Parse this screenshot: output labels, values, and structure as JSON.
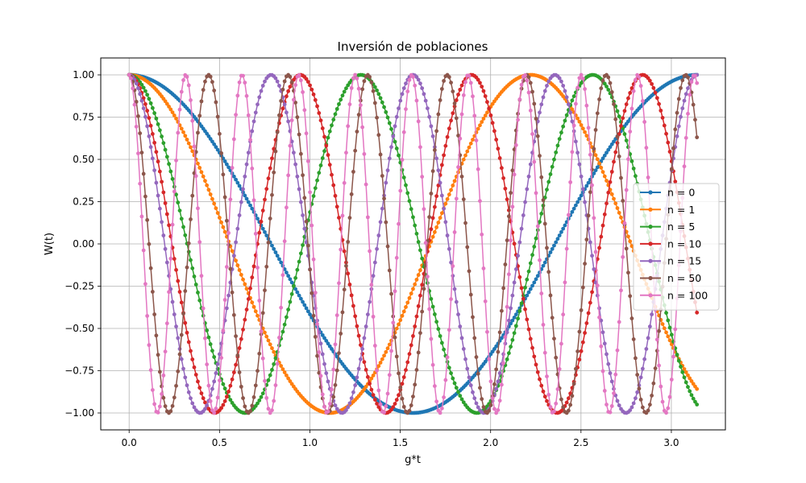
{
  "chart_data": {
    "type": "line",
    "title": "Inversión de poblaciones",
    "xlabel": "g*t",
    "ylabel": "W(t)",
    "xlim": [
      -0.157,
      3.299
    ],
    "ylim": [
      -1.1,
      1.1
    ],
    "x_range": [
      0,
      3.14159
    ],
    "points_per_series": 315,
    "xticks": [
      0.0,
      0.5,
      1.0,
      1.5,
      2.0,
      2.5,
      3.0
    ],
    "xtick_labels": [
      "0.0",
      "0.5",
      "1.0",
      "1.5",
      "2.0",
      "2.5",
      "3.0"
    ],
    "yticks": [
      1.0,
      0.75,
      0.5,
      0.25,
      0.0,
      -0.25,
      -0.5,
      -0.75,
      -1.0
    ],
    "ytick_labels": [
      "1.00",
      "0.75",
      "0.50",
      "0.25",
      "0.00",
      "−0.25",
      "−0.50",
      "−0.75",
      "−1.00"
    ],
    "grid": true,
    "legend_position": "center-right",
    "formula": "W(t) = cos(2 * sqrt(n+1) * g*t)",
    "series": [
      {
        "name": "n = 0",
        "n": 0,
        "color": "#1f77b4"
      },
      {
        "name": "n = 1",
        "n": 1,
        "color": "#ff7f0e"
      },
      {
        "name": "n = 5",
        "n": 5,
        "color": "#2ca02c"
      },
      {
        "name": "n = 10",
        "n": 10,
        "color": "#d62728"
      },
      {
        "name": "n = 15",
        "n": 15,
        "color": "#9467bd"
      },
      {
        "name": "n = 50",
        "n": 50,
        "color": "#8c564b"
      },
      {
        "name": "n = 100",
        "n": 100,
        "color": "#e377c2"
      }
    ]
  }
}
